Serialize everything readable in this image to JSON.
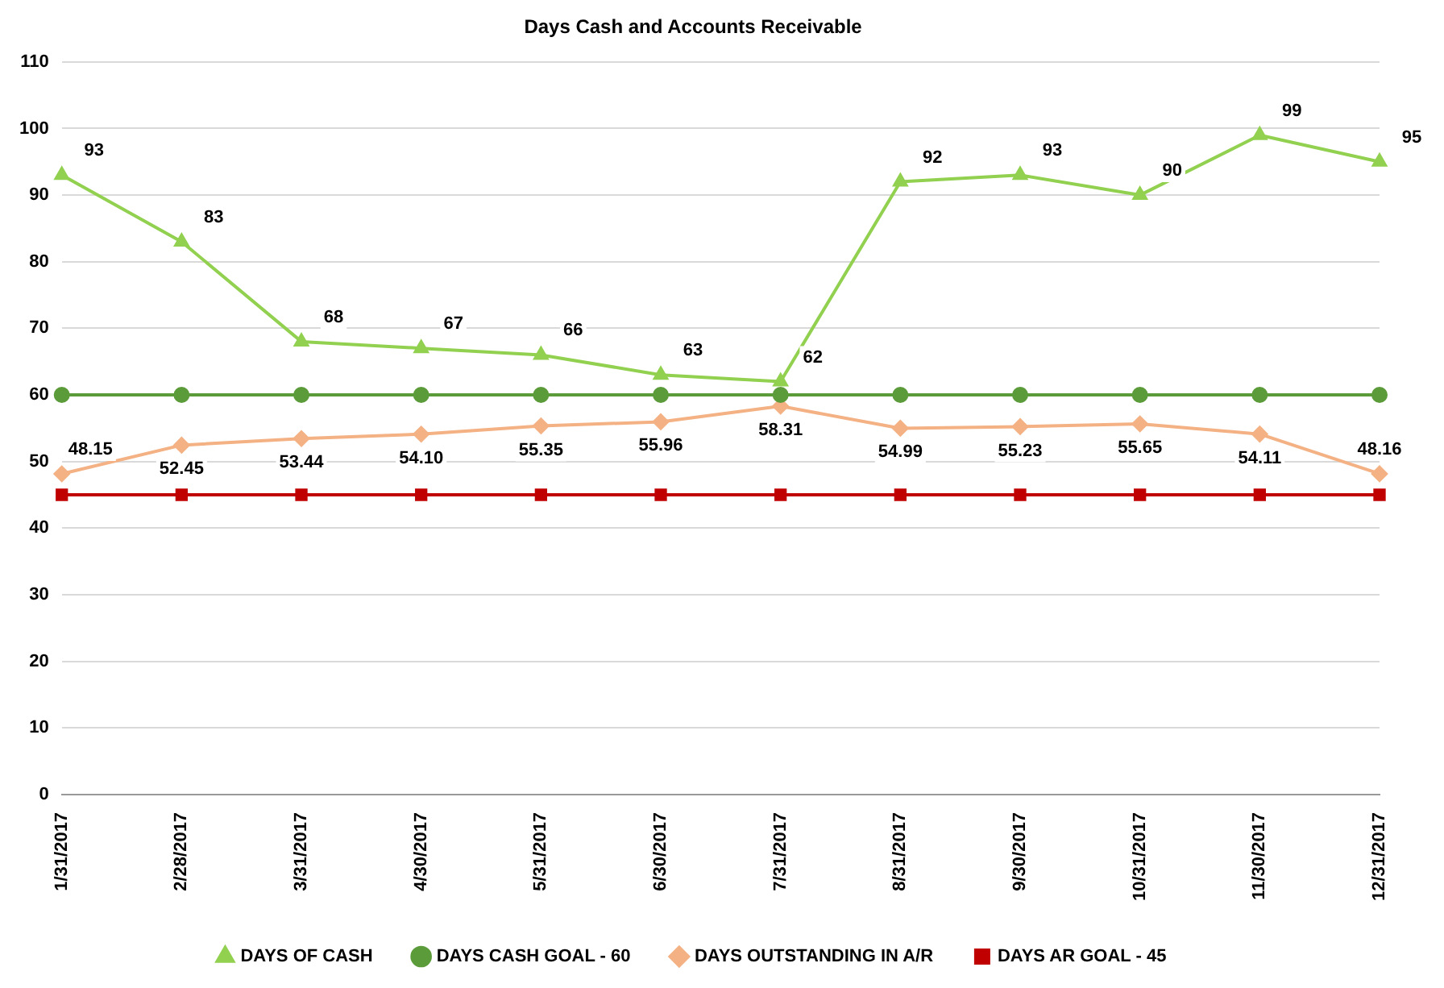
{
  "chart_data": {
    "type": "line",
    "title": "Days Cash and Accounts Receivable",
    "categories": [
      "1/31/2017",
      "2/28/2017",
      "3/31/2017",
      "4/30/2017",
      "5/31/2017",
      "6/30/2017",
      "7/31/2017",
      "8/31/2017",
      "9/30/2017",
      "10/31/2017",
      "11/30/2017",
      "12/31/2017"
    ],
    "series": [
      {
        "name": "DAYS OF CASH",
        "color": "#92d050",
        "marker": "triangle",
        "values": [
          93,
          83,
          68,
          67,
          66,
          63,
          62,
          92,
          93,
          90,
          99,
          95
        ],
        "value_labels": [
          "93",
          "83",
          "68",
          "67",
          "66",
          "63",
          "62",
          "92",
          "93",
          "90",
          "99",
          "95"
        ]
      },
      {
        "name": "DAYS CASH GOAL - 60",
        "color": "#5b9b3a",
        "marker": "circle",
        "values": [
          60,
          60,
          60,
          60,
          60,
          60,
          60,
          60,
          60,
          60,
          60,
          60
        ]
      },
      {
        "name": "DAYS OUTSTANDING IN A/R",
        "color": "#f4b183",
        "marker": "diamond",
        "values": [
          48.15,
          52.45,
          53.44,
          54.1,
          55.35,
          55.96,
          58.31,
          54.99,
          55.23,
          55.65,
          54.11,
          48.16
        ],
        "value_labels": [
          "48.15",
          "52.45",
          "53.44",
          "54.10",
          "55.35",
          "55.96",
          "58.31",
          "54.99",
          "55.23",
          "55.65",
          "54.11",
          "48.16"
        ]
      },
      {
        "name": "DAYS AR GOAL - 45",
        "color": "#c00000",
        "marker": "square",
        "values": [
          45,
          45,
          45,
          45,
          45,
          45,
          45,
          45,
          45,
          45,
          45,
          45
        ]
      }
    ],
    "ylim": [
      0,
      110
    ],
    "yticks": [
      0,
      10,
      20,
      30,
      40,
      50,
      60,
      70,
      80,
      90,
      100,
      110
    ],
    "grid": "y",
    "legend": "bottom"
  }
}
